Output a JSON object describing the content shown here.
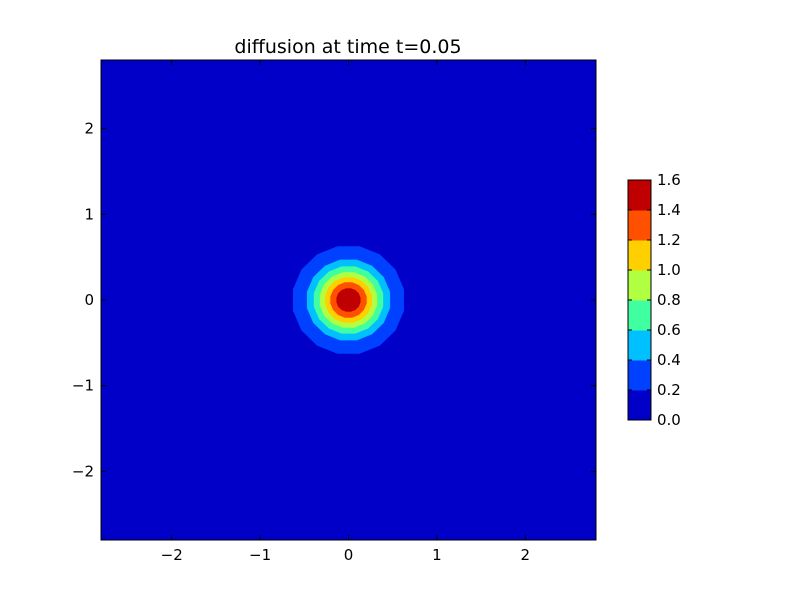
{
  "chart_data": {
    "type": "contour",
    "title": "diffusion at time t=0.05",
    "xlabel": "",
    "ylabel": "",
    "xlim": [
      -2.8,
      2.8
    ],
    "ylim": [
      -2.8,
      2.8
    ],
    "x_ticks": [
      -2,
      -1,
      0,
      1,
      2
    ],
    "x_tick_labels": [
      "−2",
      "−1",
      "0",
      "1",
      "2"
    ],
    "y_ticks": [
      2,
      1,
      0,
      -1,
      -2
    ],
    "y_tick_labels": [
      "2",
      "1",
      "0",
      "−1",
      "−2"
    ],
    "grid": false,
    "field_center": [
      0,
      0
    ],
    "levels": [
      0.0,
      0.2,
      0.4,
      0.6,
      0.8,
      1.0,
      1.2,
      1.4,
      1.6
    ],
    "level_colors": [
      "#0000c8",
      "#0040ff",
      "#00c0ff",
      "#40ffa0",
      "#b0ff40",
      "#ffd000",
      "#ff5000",
      "#c00000"
    ],
    "contour_radii": [
      {
        "level": 0.2,
        "radius": 0.64
      },
      {
        "level": 0.4,
        "radius": 0.48
      },
      {
        "level": 0.6,
        "radius": 0.4
      },
      {
        "level": 0.8,
        "radius": 0.33
      },
      {
        "level": 1.0,
        "radius": 0.27
      },
      {
        "level": 1.2,
        "radius": 0.21
      },
      {
        "level": 1.4,
        "radius": 0.14
      }
    ],
    "colorbar": {
      "tick_labels": [
        "1.6",
        "1.4",
        "1.2",
        "1.0",
        "0.8",
        "0.6",
        "0.4",
        "0.2",
        "0.0"
      ],
      "placement": "right"
    }
  }
}
